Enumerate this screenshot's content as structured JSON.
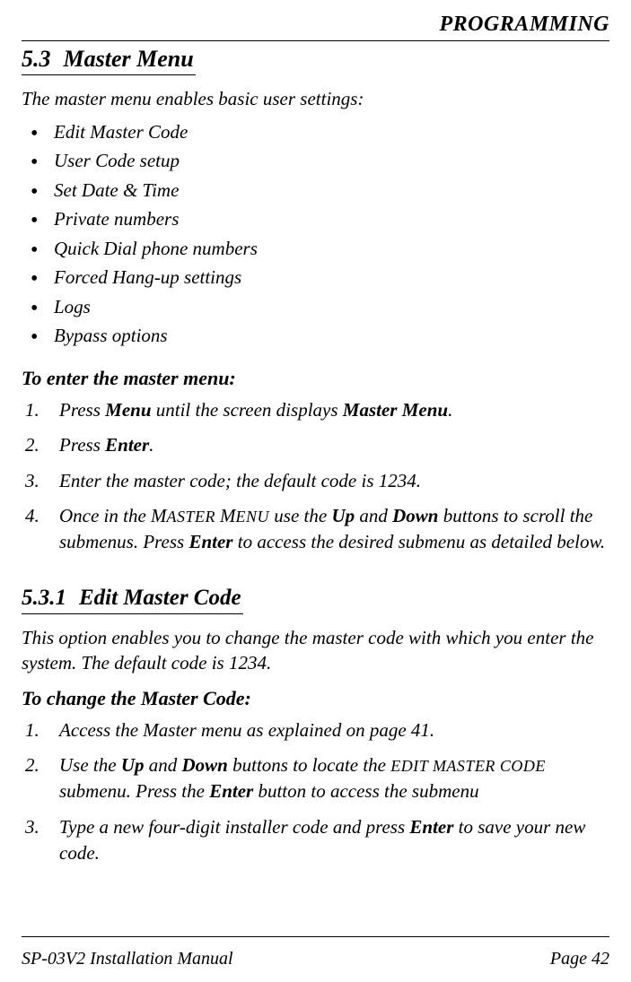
{
  "header": {
    "title": "PROGRAMMING"
  },
  "section": {
    "number": "5.3",
    "title": "Master Menu",
    "intro": "The master menu enables basic user settings:",
    "bullets": [
      "Edit Master Code",
      "User Code setup",
      "Set Date & Time",
      "Private numbers",
      "Quick Dial phone numbers",
      "Forced Hang-up settings",
      "Logs",
      "Bypass options"
    ],
    "enter_title": "To enter the master menu:",
    "steps": {
      "s1a": "Press ",
      "s1b": "Menu",
      "s1c": " until the screen displays ",
      "s1d": "Master Menu",
      "s1e": ".",
      "s2a": "Press ",
      "s2b": "Enter",
      "s2c": ".",
      "s3": "Enter the master code; the default code is 1234.",
      "s4a": "Once in the ",
      "s4b_big": "M",
      "s4b_sm": "ASTER ",
      "s4c_big": "M",
      "s4c_sm": "ENU",
      "s4d": " use the ",
      "s4e": "Up",
      "s4f": " and ",
      "s4g": "Down",
      "s4h": " buttons to scroll the submenus. Press ",
      "s4i": "Enter",
      "s4j": " to access the desired submenu as detailed below."
    }
  },
  "subsection": {
    "number": "5.3.1",
    "title": "Edit Master Code",
    "intro": "This option enables you to change the master code with which you enter the system. The default code is 1234.",
    "change_title": "To change the Master Code:",
    "steps": {
      "s1": "Access the Master menu as explained on page 41.",
      "s2a": "Use the ",
      "s2b": "Up",
      "s2c": " and ",
      "s2d": "Down",
      "s2e": " buttons to locate the ",
      "s2f": "EDIT MASTER CODE",
      "s2g": " submenu.  Press the ",
      "s2h": "Enter",
      "s2i": " button to access the submenu",
      "s3a": "Type a new four-digit installer code and press ",
      "s3b": "Enter",
      "s3c": " to save your new code."
    }
  },
  "footer": {
    "left": "SP-03V2 Installation Manual",
    "right": "Page 42"
  }
}
